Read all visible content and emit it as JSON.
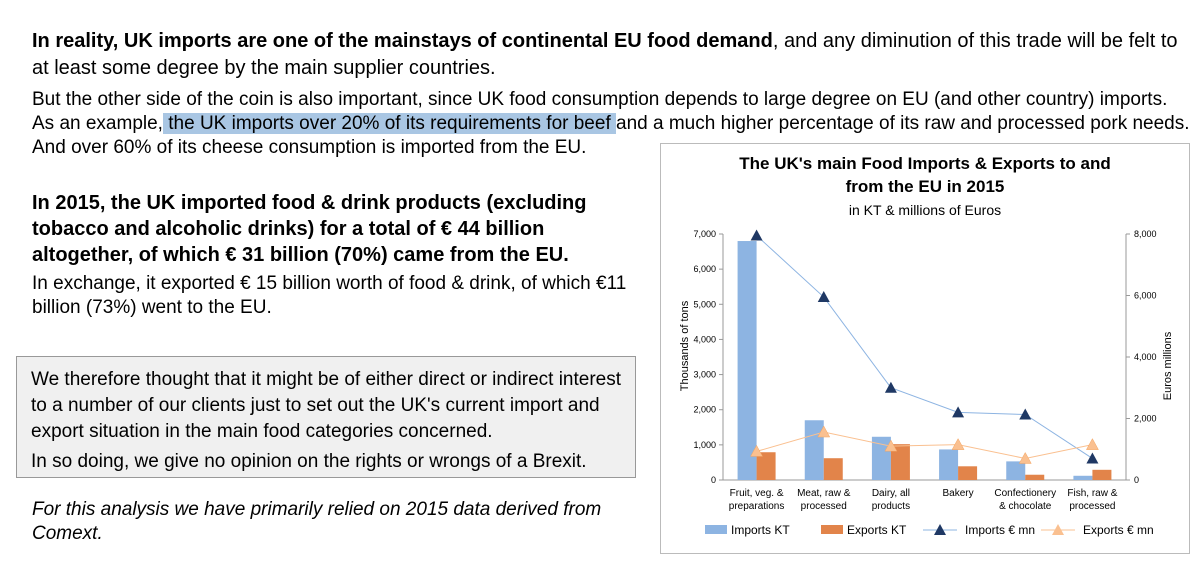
{
  "text": {
    "p1_bold": "In reality, UK imports are one of the mainstays of continental EU food demand",
    "p1_rest": ", and any diminution of this trade will be felt to at least some degree by the main supplier countries.",
    "p2_a": "But the other side of the coin is also important, since UK food consumption depends to large degree on EU (and other country) imports. As an example,",
    "p2_highlight": " the UK imports over 20% of its requirements for beef ",
    "p2_b": "and a much higher percentage of its raw and processed pork needs.",
    "p2_c": "And over 60% of its cheese consumption is imported from the EU.",
    "p3": "In 2015, the UK imported food & drink products (excluding tobacco and alcoholic drinks) for a total of € 44 billion altogether, of which € 31 billion (70%) came from the EU.",
    "p4": "In exchange, it exported € 15 billion worth of food & drink, of which €11 billion (73%) went to the EU.",
    "box_p1": "We therefore thought that it might be of either direct or indirect interest to a number of our clients just to set out the UK's current import and export situation in the main food categories concerned.",
    "box_p2": "In so doing, we give no opinion on the rights or wrongs of a Brexit.",
    "p5": "For this analysis we have primarily relied on 2015 data derived from Comext."
  },
  "chart_data": {
    "type": "bar",
    "title_line1": "The UK's main Food Imports & Exports to and",
    "title_line2": "from the EU in 2015",
    "subtitle": "in KT & millions of Euros",
    "ylabel": "Thousands of tons",
    "y2label": "Euros millions",
    "ylim": [
      0,
      7000
    ],
    "y2lim": [
      0,
      8000
    ],
    "yticks": [
      "0",
      "1,000",
      "2,000",
      "3,000",
      "4,000",
      "5,000",
      "6,000",
      "7,000"
    ],
    "y2ticks": [
      "0",
      "2,000",
      "4,000",
      "6,000",
      "8,000"
    ],
    "categories": [
      [
        "Fruit, veg. &",
        "preparations"
      ],
      [
        "Meat, raw &",
        "processed"
      ],
      [
        "Dairy, all",
        "products"
      ],
      [
        "Bakery"
      ],
      [
        "Confectionery",
        "& chocolate"
      ],
      [
        "Fish, raw &",
        "processed"
      ]
    ],
    "series": [
      {
        "name": "Imports KT",
        "kind": "bar",
        "axis": "left",
        "color": "#8db4e2",
        "values": [
          6800,
          1700,
          1230,
          870,
          530,
          120
        ]
      },
      {
        "name": "Exports KT",
        "kind": "bar",
        "axis": "left",
        "color": "#e2844a",
        "values": [
          790,
          620,
          1020,
          390,
          150,
          290
        ]
      },
      {
        "name": "Imports € mn",
        "kind": "line",
        "axis": "right",
        "color": "#1f3864",
        "line_color": "#8db4e2",
        "values": [
          7950,
          5950,
          3000,
          2200,
          2130,
          700
        ]
      },
      {
        "name": "Exports € mn",
        "kind": "line",
        "axis": "right",
        "color": "#fac090",
        "line_color": "#fac090",
        "values": [
          930,
          1560,
          1100,
          1150,
          700,
          1150
        ]
      }
    ]
  }
}
